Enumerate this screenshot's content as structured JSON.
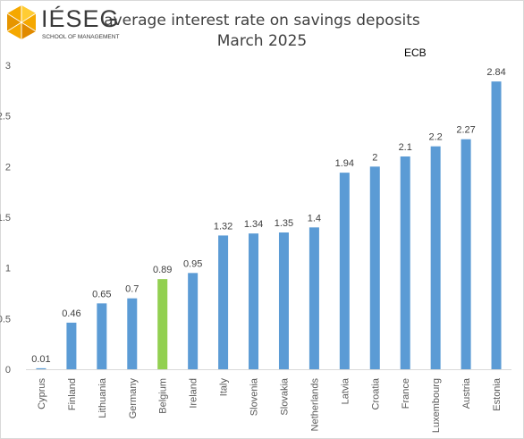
{
  "logo": {
    "name": "IÉSEG",
    "subtitle": "SCHOOL OF MANAGEMENT",
    "color": "#f5a800"
  },
  "chart_data": {
    "type": "bar",
    "title": "average interest rate on savings deposits",
    "subtitle": "March 2025",
    "source": "ECB",
    "xlabel": "",
    "ylabel": "",
    "ylim": [
      0,
      3
    ],
    "yticks": [
      "0",
      "0.5",
      "1",
      "1.5",
      "2",
      "2.5",
      "3"
    ],
    "grid": false,
    "legend": "none",
    "categories": [
      "Cyprus",
      "Finland",
      "Lithuania",
      "Germany",
      "Belgium",
      "Ireland",
      "Italy",
      "Slovenia",
      "Slovakia",
      "Netherlands",
      "Latvia",
      "Croatia",
      "France",
      "Luxembourg",
      "Austria",
      "Estonia"
    ],
    "values": [
      0.01,
      0.46,
      0.65,
      0.7,
      0.89,
      0.95,
      1.32,
      1.34,
      1.35,
      1.4,
      1.94,
      2,
      2.1,
      2.2,
      2.27,
      2.84
    ],
    "value_labels": [
      "0.01",
      "0.46",
      "0.65",
      "0.7",
      "0.89",
      "0.95",
      "1.32",
      "1.34",
      "1.35",
      "1.4",
      "1.94",
      "2",
      "2.1",
      "2.2",
      "2.27",
      "2.84"
    ],
    "bar_color": "#5b9bd5",
    "highlight_category": "Belgium",
    "highlight_color": "#92d050"
  }
}
